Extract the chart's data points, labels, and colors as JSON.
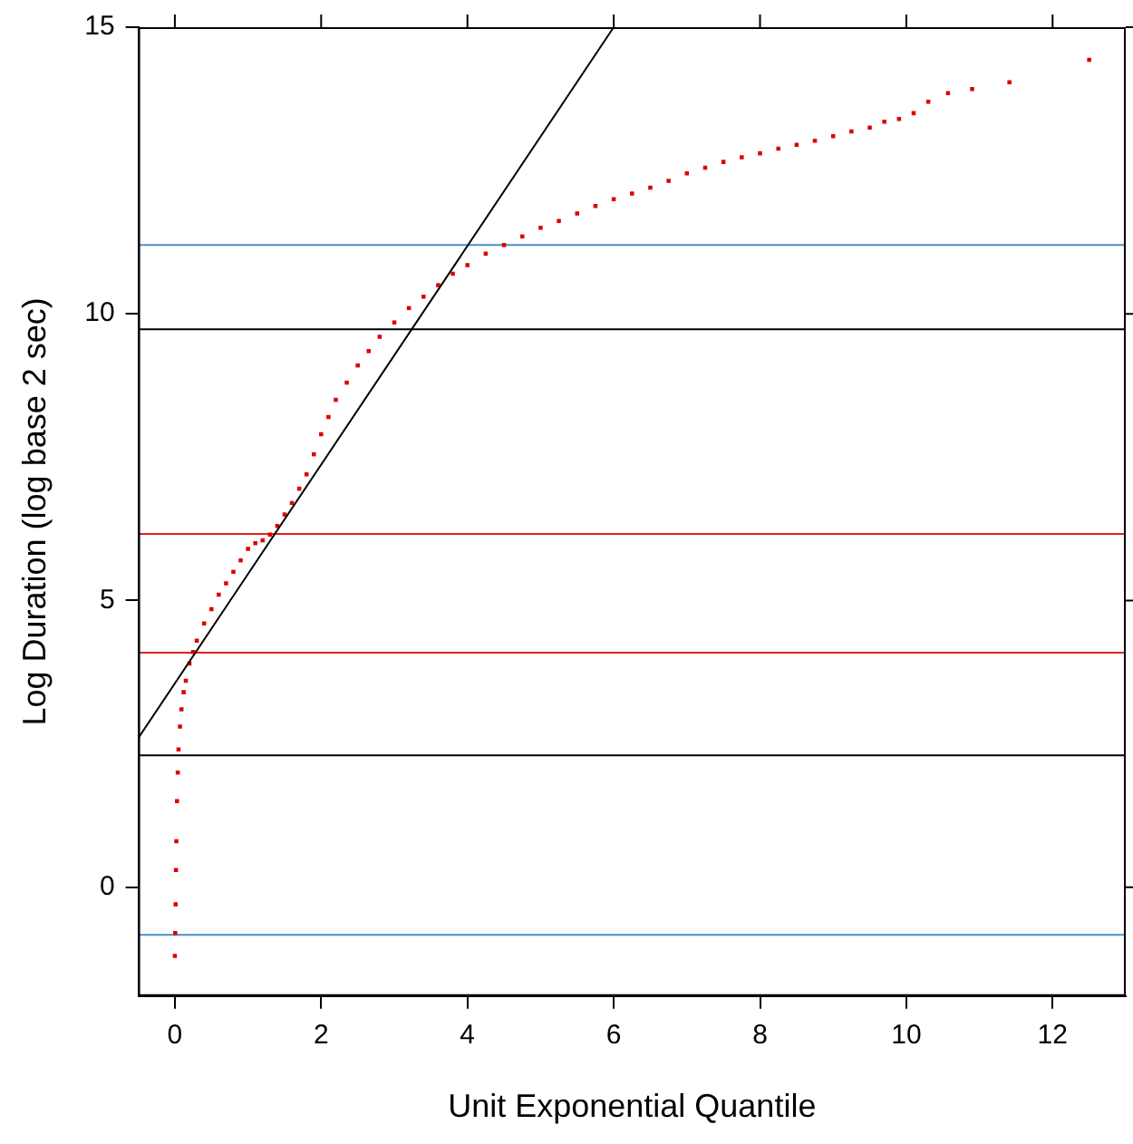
{
  "chart_data": {
    "type": "scatter",
    "xlabel": "Unit Exponential Quantile",
    "ylabel": "Log Duration (log base 2 sec)",
    "xlim": [
      -0.5,
      13
    ],
    "ylim": [
      -1.9,
      15
    ],
    "xticks": [
      0,
      2,
      4,
      6,
      8,
      10,
      12
    ],
    "yticks": [
      0,
      5,
      10,
      15
    ],
    "grid": false,
    "legend": false,
    "series": [
      {
        "marker": "square",
        "color": "#dd0000",
        "x": [
          0,
          0.005,
          0.01,
          0.015,
          0.02,
          0.03,
          0.04,
          0.05,
          0.07,
          0.09,
          0.12,
          0.15,
          0.2,
          0.25,
          0.3,
          0.4,
          0.5,
          0.6,
          0.7,
          0.8,
          0.9,
          1.0,
          1.1,
          1.2,
          1.3,
          1.4,
          1.5,
          1.6,
          1.7,
          1.8,
          1.9,
          2.0,
          2.1,
          2.2,
          2.35,
          2.5,
          2.65,
          2.8,
          3.0,
          3.2,
          3.4,
          3.6,
          3.8,
          4.0,
          4.25,
          4.5,
          4.75,
          5.0,
          5.25,
          5.5,
          5.75,
          6.0,
          6.25,
          6.5,
          6.75,
          7.0,
          7.25,
          7.5,
          7.75,
          8.0,
          8.25,
          8.5,
          8.75,
          9.0,
          9.25,
          9.5,
          9.7,
          9.9,
          10.1,
          10.3,
          10.57,
          10.9,
          11.41,
          12.5
        ],
        "values": [
          -1.2,
          -0.8,
          -0.3,
          0.3,
          0.8,
          1.5,
          2.0,
          2.4,
          2.8,
          3.1,
          3.4,
          3.6,
          3.9,
          4.1,
          4.3,
          4.6,
          4.85,
          5.1,
          5.3,
          5.5,
          5.7,
          5.9,
          6.0,
          6.05,
          6.15,
          6.3,
          6.5,
          6.7,
          6.95,
          7.2,
          7.55,
          7.9,
          8.2,
          8.5,
          8.8,
          9.1,
          9.35,
          9.6,
          9.85,
          10.1,
          10.3,
          10.5,
          10.7,
          10.85,
          11.05,
          11.2,
          11.35,
          11.5,
          11.62,
          11.75,
          11.88,
          12.0,
          12.1,
          12.2,
          12.32,
          12.45,
          12.55,
          12.65,
          12.73,
          12.8,
          12.88,
          12.95,
          13.02,
          13.1,
          13.18,
          13.25,
          13.35,
          13.4,
          13.5,
          13.7,
          13.85,
          13.92,
          14.04,
          14.43
        ]
      },
      {
        "type": "line",
        "marker": "none",
        "color": "#000000",
        "x": [
          -0.5,
          6
        ],
        "values": [
          2.6,
          15
        ]
      }
    ],
    "ref_lines": [
      {
        "axis": "y",
        "value": 11.2,
        "color": "#4a8fc9"
      },
      {
        "axis": "y",
        "value": 9.73,
        "color": "#000000"
      },
      {
        "axis": "y",
        "value": 6.16,
        "color": "#e02020"
      },
      {
        "axis": "y",
        "value": 4.09,
        "color": "#e02020"
      },
      {
        "axis": "y",
        "value": 2.3,
        "color": "#000000"
      },
      {
        "axis": "y",
        "value": -0.83,
        "color": "#4a8fc9"
      }
    ]
  }
}
